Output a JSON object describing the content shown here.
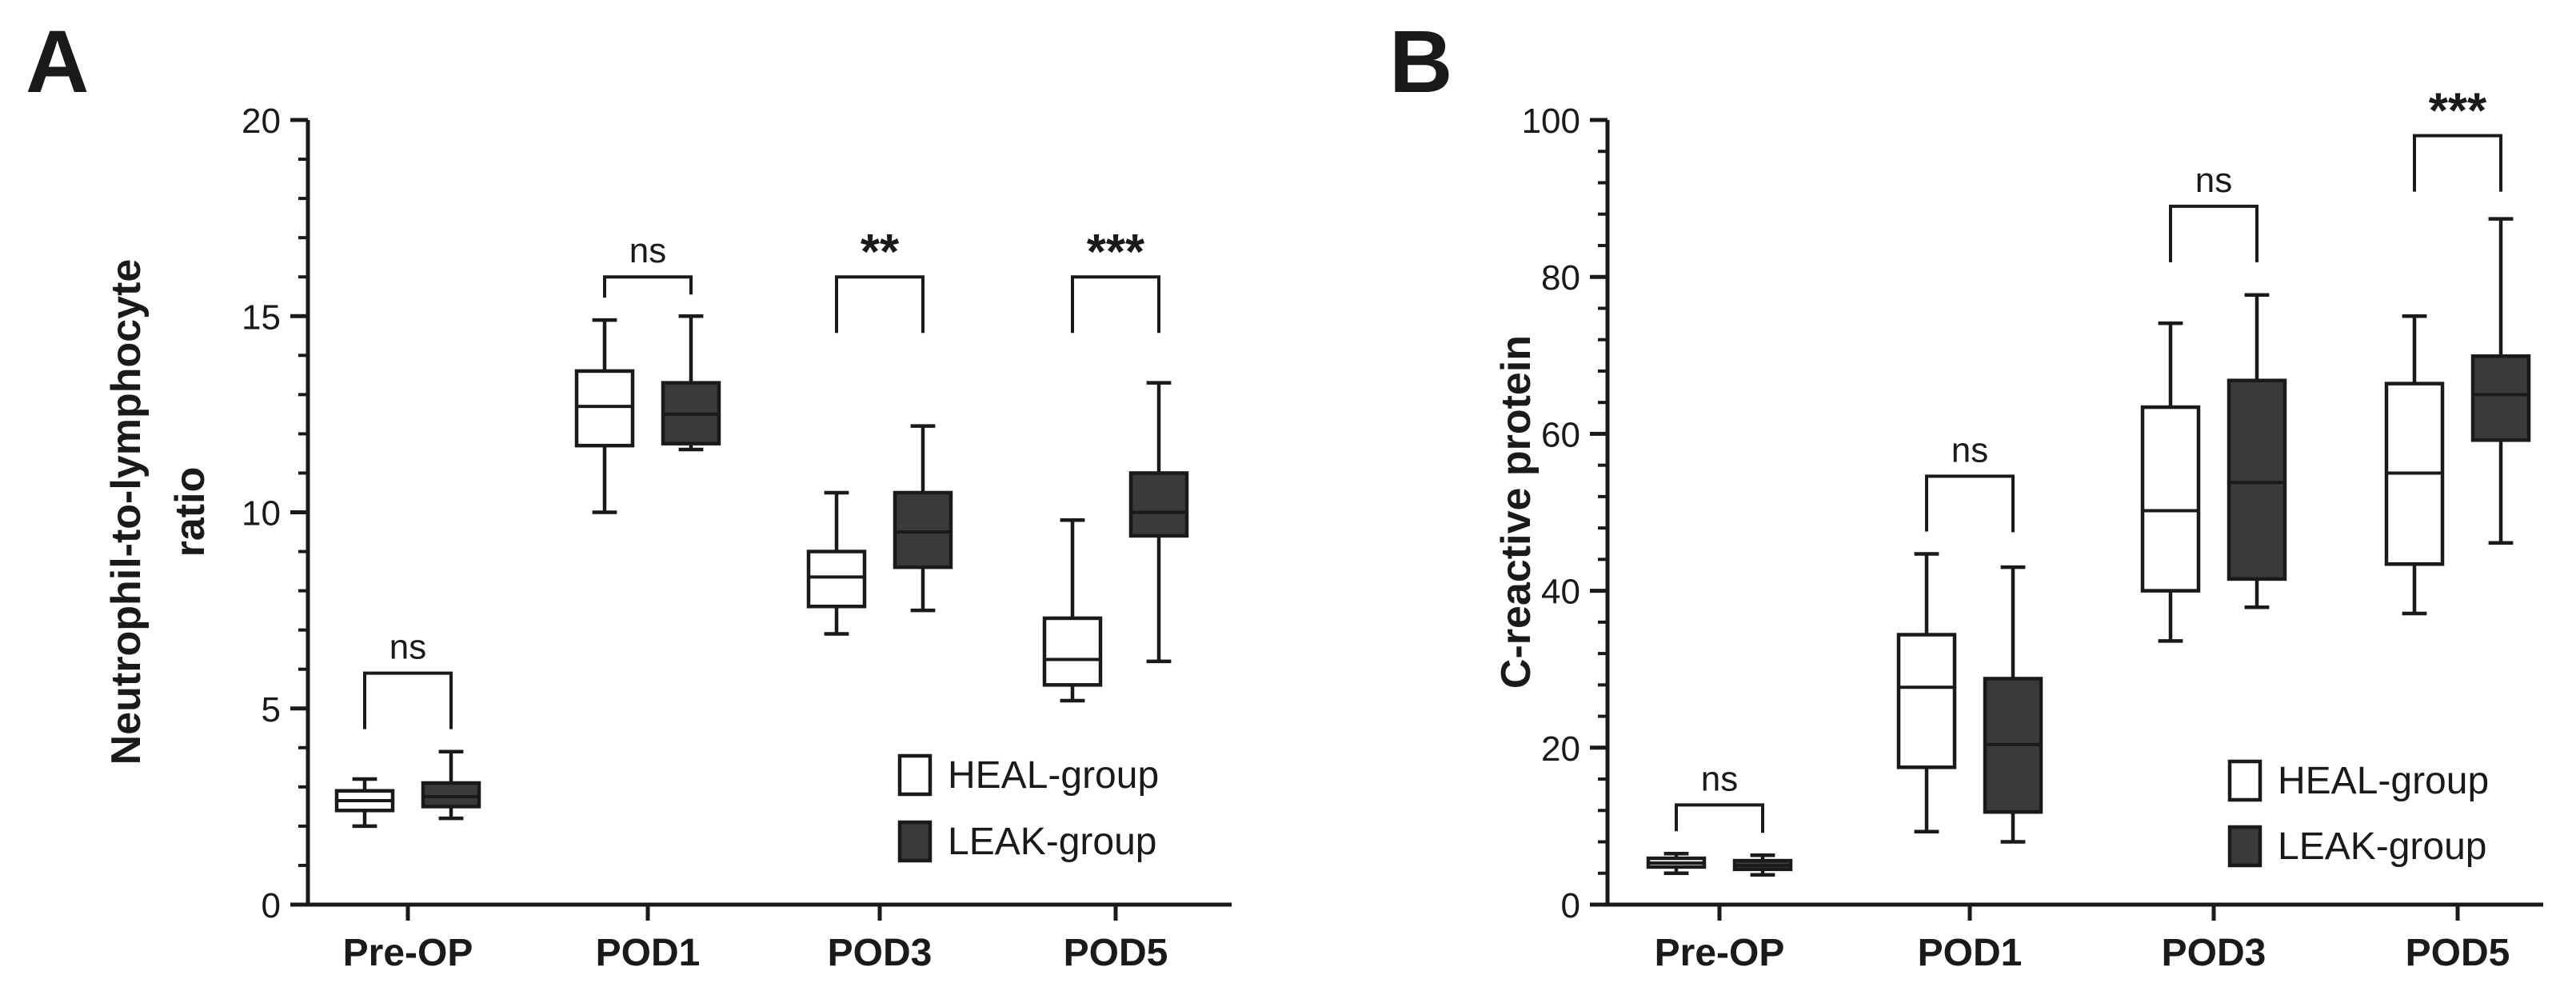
{
  "colors": {
    "heal_fill": "#ffffff",
    "leak_fill": "#3a3a3a",
    "stroke": "#1a1a1a",
    "median_on_dark": "#1a1a1a"
  },
  "legend": {
    "heal": "HEAL-group",
    "leak": "LEAK-group"
  },
  "chart_data": [
    {
      "panel": "A",
      "type": "boxplot",
      "ylabel_line1": "Neutrophil-to-lymphocyte",
      "ylabel_line2": "ratio",
      "ylim": [
        0,
        20
      ],
      "yticks": [
        0,
        5,
        10,
        15,
        20
      ],
      "yticklabels": [
        "0",
        "5",
        "10",
        "15",
        "20"
      ],
      "categories": [
        "Pre-OP",
        "POD1",
        "POD3",
        "POD5"
      ],
      "legend_position": "bottom-right",
      "series": [
        {
          "name": "HEAL-group",
          "boxes": [
            {
              "min": 2.0,
              "q1": 2.4,
              "median": 2.65,
              "q3": 2.9,
              "max": 3.2
            },
            {
              "min": 10.0,
              "q1": 11.7,
              "median": 12.7,
              "q3": 13.6,
              "max": 14.9
            },
            {
              "min": 6.9,
              "q1": 7.6,
              "median": 8.35,
              "q3": 9.0,
              "max": 10.5
            },
            {
              "min": 5.2,
              "q1": 5.6,
              "median": 6.25,
              "q3": 7.3,
              "max": 9.8
            }
          ]
        },
        {
          "name": "LEAK-group",
          "boxes": [
            {
              "min": 2.2,
              "q1": 2.5,
              "median": 2.75,
              "q3": 3.1,
              "max": 3.9
            },
            {
              "min": 11.6,
              "q1": 11.75,
              "median": 12.5,
              "q3": 13.3,
              "max": 15.0
            },
            {
              "min": 7.5,
              "q1": 8.6,
              "median": 9.5,
              "q3": 10.5,
              "max": 12.2
            },
            {
              "min": 6.2,
              "q1": 9.4,
              "median": 10.0,
              "q3": 11.0,
              "max": 13.3
            }
          ]
        }
      ],
      "significance": [
        {
          "category": "Pre-OP",
          "label": "ns",
          "y": 5.9
        },
        {
          "category": "POD1",
          "label": "ns",
          "y": 16.0
        },
        {
          "category": "POD3",
          "label": "**",
          "y": 16.0
        },
        {
          "category": "POD5",
          "label": "***",
          "y": 16.0
        }
      ]
    },
    {
      "panel": "B",
      "type": "boxplot",
      "ylabel_line1": "C-reactive protein",
      "ylabel_line2": "",
      "ylim": [
        0,
        100
      ],
      "yticks": [
        0,
        20,
        40,
        60,
        80,
        100
      ],
      "yticklabels": [
        "0",
        "20",
        "40",
        "60",
        "80",
        "100"
      ],
      "categories": [
        "Pre-OP",
        "POD1",
        "POD3",
        "POD5"
      ],
      "legend_position": "bottom-right",
      "series": [
        {
          "name": "HEAL-group",
          "boxes": [
            {
              "min": 4.0,
              "q1": 4.8,
              "median": 5.3,
              "q3": 5.9,
              "max": 6.5
            },
            {
              "min": 9.3,
              "q1": 17.5,
              "median": 27.7,
              "q3": 34.4,
              "max": 44.7
            },
            {
              "min": 33.6,
              "q1": 40.0,
              "median": 50.2,
              "q3": 63.4,
              "max": 74.1
            },
            {
              "min": 37.1,
              "q1": 43.4,
              "median": 55.0,
              "q3": 66.4,
              "max": 75.0
            }
          ]
        },
        {
          "name": "LEAK-group",
          "boxes": [
            {
              "min": 3.8,
              "q1": 4.5,
              "median": 5.0,
              "q3": 5.6,
              "max": 6.3
            },
            {
              "min": 8.0,
              "q1": 11.8,
              "median": 20.4,
              "q3": 28.8,
              "max": 43.0
            },
            {
              "min": 37.9,
              "q1": 41.5,
              "median": 53.8,
              "q3": 66.8,
              "max": 77.7
            },
            {
              "min": 46.1,
              "q1": 59.2,
              "median": 65.0,
              "q3": 69.9,
              "max": 87.4
            }
          ]
        }
      ],
      "significance": [
        {
          "category": "Pre-OP",
          "label": "ns",
          "y": 12.7
        },
        {
          "category": "POD1",
          "label": "ns",
          "y": 54.6
        },
        {
          "category": "POD3",
          "label": "ns",
          "y": 89.0
        },
        {
          "category": "POD5",
          "label": "***",
          "y": 98.0
        }
      ]
    }
  ]
}
